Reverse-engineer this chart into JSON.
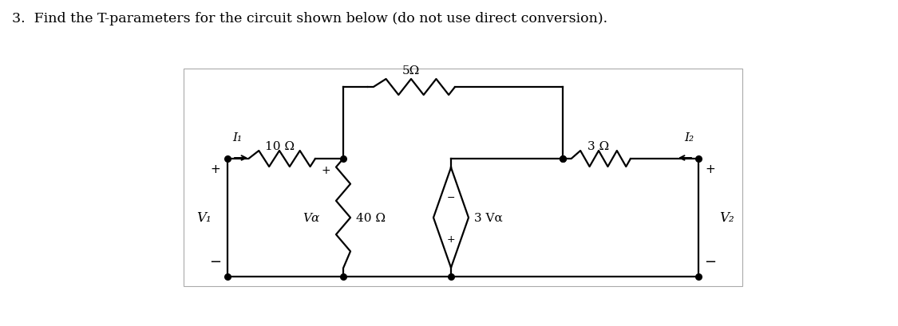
{
  "title": "3.  Find the T-parameters for the circuit shown below (do not use direct conversion).",
  "title_fontsize": 12.5,
  "bg_color": "#ffffff",
  "line_color": "#000000",
  "lw": 1.6,
  "resistor_5": "5Ω",
  "resistor_10": "10 Ω",
  "resistor_3": "3 Ω",
  "resistor_40": "40 Ω",
  "vcvs_label": "3 Vα",
  "v1_label": "V₁",
  "v2_label": "V₂",
  "valpha_label": "Vα",
  "i1_label": "I₁",
  "i2_label": "I₂"
}
